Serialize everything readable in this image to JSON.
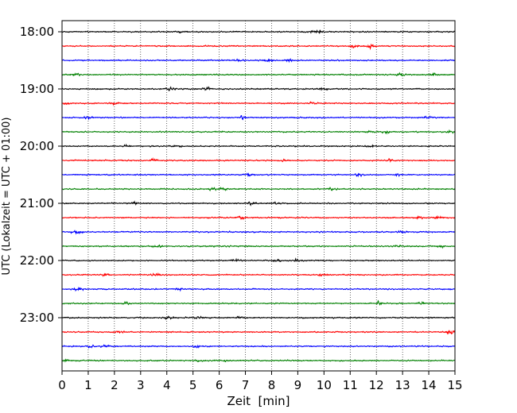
{
  "chart_data": {
    "type": "line",
    "title": "",
    "xlabel": "Zeit  [min]",
    "ylabel": "UTC (Lokalzeit = UTC + 01:00)",
    "xlim": [
      0,
      15
    ],
    "x_ticks": [
      0,
      1,
      2,
      3,
      4,
      5,
      6,
      7,
      8,
      9,
      10,
      11,
      12,
      13,
      14,
      15
    ],
    "y_tick_labels": [
      "18:00",
      "19:00",
      "20:00",
      "21:00",
      "22:00",
      "23:00"
    ],
    "y_tick_times_utc": [
      "18:00",
      "19:00",
      "20:00",
      "21:00",
      "22:00",
      "23:00"
    ],
    "trace_interval_minutes": 15,
    "grid": "vertical dotted at each minute",
    "series_color_cycle": [
      "#000000",
      "#ff0000",
      "#0000ff",
      "#008000"
    ],
    "traces": [
      {
        "start_utc": "18:00",
        "color": "#000000"
      },
      {
        "start_utc": "18:15",
        "color": "#ff0000"
      },
      {
        "start_utc": "18:30",
        "color": "#0000ff"
      },
      {
        "start_utc": "18:45",
        "color": "#008000"
      },
      {
        "start_utc": "19:00",
        "color": "#000000"
      },
      {
        "start_utc": "19:15",
        "color": "#ff0000"
      },
      {
        "start_utc": "19:30",
        "color": "#0000ff"
      },
      {
        "start_utc": "19:45",
        "color": "#008000"
      },
      {
        "start_utc": "20:00",
        "color": "#000000"
      },
      {
        "start_utc": "20:15",
        "color": "#ff0000"
      },
      {
        "start_utc": "20:30",
        "color": "#0000ff"
      },
      {
        "start_utc": "20:45",
        "color": "#008000"
      },
      {
        "start_utc": "21:00",
        "color": "#000000"
      },
      {
        "start_utc": "21:15",
        "color": "#ff0000"
      },
      {
        "start_utc": "21:30",
        "color": "#0000ff"
      },
      {
        "start_utc": "21:45",
        "color": "#008000"
      },
      {
        "start_utc": "22:00",
        "color": "#000000"
      },
      {
        "start_utc": "22:15",
        "color": "#ff0000"
      },
      {
        "start_utc": "22:30",
        "color": "#0000ff"
      },
      {
        "start_utc": "22:45",
        "color": "#008000"
      },
      {
        "start_utc": "23:00",
        "color": "#000000"
      },
      {
        "start_utc": "23:15",
        "color": "#ff0000"
      },
      {
        "start_utc": "23:30",
        "color": "#0000ff"
      },
      {
        "start_utc": "23:45",
        "color": "#008000"
      }
    ]
  }
}
